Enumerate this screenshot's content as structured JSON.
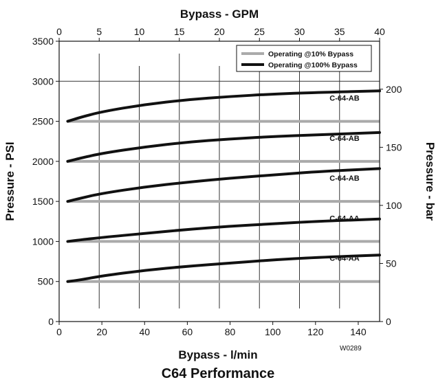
{
  "chart_data": {
    "type": "line",
    "title": "C64 Performance",
    "code": "W0289",
    "x": {
      "label": "Bypass - l/min",
      "range": [
        0,
        150
      ],
      "ticks": [
        0,
        20,
        40,
        60,
        80,
        100,
        120,
        140
      ]
    },
    "x2": {
      "label": "Bypass - GPM",
      "range": [
        0,
        40
      ],
      "ticks": [
        0,
        5,
        10,
        15,
        20,
        25,
        30,
        35,
        40
      ]
    },
    "y": {
      "label": "Pressure - PSI",
      "range": [
        0,
        3500
      ],
      "ticks": [
        0,
        500,
        1000,
        1500,
        2000,
        2500,
        3000,
        3500
      ]
    },
    "y2": {
      "label": "Pressure - bar",
      "range": [
        0,
        241.3
      ],
      "ticks": [
        0,
        50,
        100,
        150,
        200
      ]
    },
    "legend": {
      "position": "top-right",
      "items": [
        {
          "label": "Operating @10% Bypass",
          "color": "#aaaaaa"
        },
        {
          "label": "Operating @100% Bypass",
          "color": "#111111"
        }
      ]
    },
    "series": [
      {
        "label": "C-64-AB",
        "color_10": "#aaaaaa",
        "color_100": "#111111",
        "operating_10": {
          "x": [
            4,
            150
          ],
          "y": [
            2500,
            2500
          ]
        },
        "operating_100": {
          "x": [
            4,
            10,
            20,
            40,
            60,
            80,
            100,
            120,
            150
          ],
          "y": [
            2500,
            2550,
            2620,
            2710,
            2770,
            2810,
            2840,
            2860,
            2880
          ]
        }
      },
      {
        "label": "C-64-AB",
        "color_10": "#aaaaaa",
        "color_100": "#111111",
        "operating_10": {
          "x": [
            4,
            150
          ],
          "y": [
            2000,
            2000
          ]
        },
        "operating_100": {
          "x": [
            4,
            10,
            20,
            40,
            60,
            80,
            100,
            120,
            150
          ],
          "y": [
            2000,
            2040,
            2100,
            2180,
            2240,
            2280,
            2310,
            2330,
            2360
          ]
        }
      },
      {
        "label": "C-64-AB",
        "color_10": "#aaaaaa",
        "color_100": "#111111",
        "operating_10": {
          "x": [
            4,
            150
          ],
          "y": [
            1500,
            1500
          ]
        },
        "operating_100": {
          "x": [
            4,
            10,
            20,
            40,
            60,
            80,
            100,
            120,
            150
          ],
          "y": [
            1500,
            1540,
            1600,
            1680,
            1740,
            1790,
            1830,
            1870,
            1910
          ]
        }
      },
      {
        "label": "C-64-AA",
        "color_10": "#aaaaaa",
        "color_100": "#111111",
        "operating_10": {
          "x": [
            4,
            150
          ],
          "y": [
            1000,
            1000
          ]
        },
        "operating_100": {
          "x": [
            4,
            10,
            20,
            40,
            60,
            80,
            100,
            120,
            150
          ],
          "y": [
            1000,
            1020,
            1050,
            1100,
            1150,
            1190,
            1220,
            1250,
            1280
          ]
        }
      },
      {
        "label": "C-64-AA",
        "color_10": "#aaaaaa",
        "color_100": "#111111",
        "operating_10": {
          "x": [
            4,
            150
          ],
          "y": [
            500,
            500
          ]
        },
        "operating_100": {
          "x": [
            4,
            10,
            20,
            40,
            60,
            80,
            100,
            120,
            150
          ],
          "y": [
            500,
            520,
            570,
            640,
            690,
            730,
            770,
            800,
            830
          ]
        }
      }
    ]
  }
}
